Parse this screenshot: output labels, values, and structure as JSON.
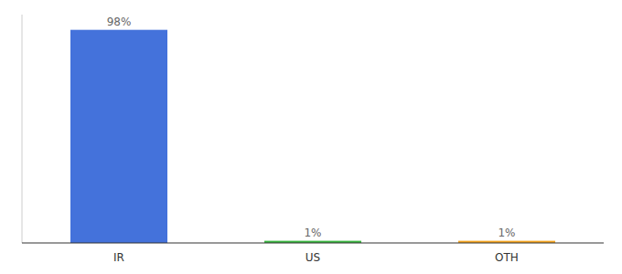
{
  "chart_data": {
    "type": "bar",
    "categories": [
      "IR",
      "US",
      "OTH"
    ],
    "values": [
      98,
      1,
      1
    ],
    "value_labels": [
      "98%",
      "1%",
      "1%"
    ],
    "colors": [
      "#4472db",
      "#3db843",
      "#f5a623"
    ],
    "ylim": [
      0,
      105
    ],
    "grid": false,
    "data_labels": true,
    "tick_labels": "x"
  }
}
